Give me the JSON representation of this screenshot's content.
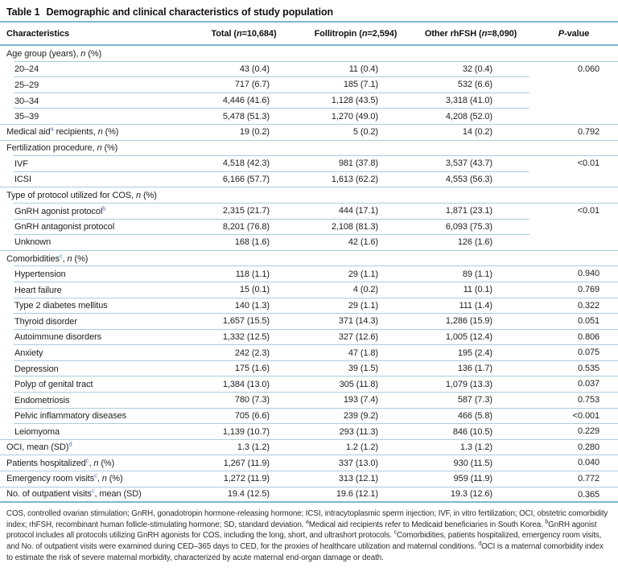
{
  "title": {
    "label": "Table 1",
    "text": "Demographic and clinical characteristics of study population"
  },
  "columns": [
    "Characteristics",
    "Total (~n~=10,684)",
    "Follitropin (~n~=2,594)",
    "Other rhFSH (~n~=8,090)",
    "~P~-value"
  ],
  "rows": [
    {
      "kind": "section",
      "label": "Age group (years), ~n~ (%)"
    },
    {
      "kind": "sub",
      "label": "20–24",
      "total": "43 (0.4)",
      "follitropin": "11 (0.4)",
      "other": "32 (0.4)",
      "p": "0.060",
      "pspan": 4
    },
    {
      "kind": "sub",
      "label": "25–29",
      "total": "717 (6.7)",
      "follitropin": "185 (7.1)",
      "other": "532 (6.6)"
    },
    {
      "kind": "sub",
      "label": "30–34",
      "total": "4,446 (41.6)",
      "follitropin": "1,128 (43.5)",
      "other": "3,318 (41.0)"
    },
    {
      "kind": "sub",
      "label": "35–39",
      "total": "5,478 (51.3)",
      "follitropin": "1,270 (49.0)",
      "other": "4,208 (52.0)",
      "groupEnd": true
    },
    {
      "kind": "top",
      "label": "Medical aid^{a} recipients, ~n~ (%)",
      "total": "19 (0.2)",
      "follitropin": "5 (0.2)",
      "other": "14 (0.2)",
      "p": "0.792"
    },
    {
      "kind": "section",
      "label": "Fertilization procedure, ~n~ (%)"
    },
    {
      "kind": "sub",
      "label": "IVF",
      "total": "4,518 (42.3)",
      "follitropin": "981 (37.8)",
      "other": "3,537 (43.7)",
      "p": "<0.01",
      "pspan": 2
    },
    {
      "kind": "sub",
      "label": "ICSI",
      "total": "6,166 (57.7)",
      "follitropin": "1,613 (62.2)",
      "other": "4,553 (56.3)",
      "groupEnd": true
    },
    {
      "kind": "section",
      "label": "Type of protocol utilized for COS, ~n~ (%)"
    },
    {
      "kind": "sub",
      "label": "GnRH agonist protocol^{b}",
      "total": "2,315 (21.7)",
      "follitropin": "444 (17.1)",
      "other": "1,871 (23.1)",
      "p": "<0.01",
      "pspan": 3
    },
    {
      "kind": "sub",
      "label": "GnRH antagonist protocol",
      "total": "8,201 (76.8)",
      "follitropin": "2,108 (81.3)",
      "other": "6,093 (75.3)"
    },
    {
      "kind": "sub",
      "label": "Unknown",
      "total": "168 (1.6)",
      "follitropin": "42 (1.6)",
      "other": "126 (1.6)",
      "groupEnd": true
    },
    {
      "kind": "section",
      "label": "Comorbidities^{c}, ~n~ (%)"
    },
    {
      "kind": "sub",
      "label": "Hypertension",
      "total": "118 (1.1)",
      "follitropin": "29 (1.1)",
      "other": "89 (1.1)",
      "p": "0.940"
    },
    {
      "kind": "sub",
      "label": "Heart failure",
      "total": "15 (0.1)",
      "follitropin": "4 (0.2)",
      "other": "11 (0.1)",
      "p": "0.769"
    },
    {
      "kind": "sub",
      "label": "Type 2 diabetes mellitus",
      "total": "140 (1.3)",
      "follitropin": "29 (1.1)",
      "other": "111 (1.4)",
      "p": "0.322"
    },
    {
      "kind": "sub",
      "label": "Thyroid disorder",
      "total": "1,657 (15.5)",
      "follitropin": "371 (14.3)",
      "other": "1,286 (15.9)",
      "p": "0.051"
    },
    {
      "kind": "sub",
      "label": "Autoimmune disorders",
      "total": "1,332 (12.5)",
      "follitropin": "327 (12.6)",
      "other": "1,005 (12.4)",
      "p": "0.806"
    },
    {
      "kind": "sub",
      "label": "Anxiety",
      "total": "242 (2.3)",
      "follitropin": "47 (1.8)",
      "other": "195 (2.4)",
      "p": "0.075"
    },
    {
      "kind": "sub",
      "label": "Depression",
      "total": "175 (1.6)",
      "follitropin": "39 (1.5)",
      "other": "136 (1.7)",
      "p": "0.535"
    },
    {
      "kind": "sub",
      "label": "Polyp of genital tract",
      "total": "1,384 (13.0)",
      "follitropin": "305 (11.8)",
      "other": "1,079 (13.3)",
      "p": "0.037"
    },
    {
      "kind": "sub",
      "label": "Endometriosis",
      "total": "780 (7.3)",
      "follitropin": "193 (7.4)",
      "other": "587 (7.3)",
      "p": "0.753"
    },
    {
      "kind": "sub",
      "label": "Pelvic inflammatory diseases",
      "total": "705 (6.6)",
      "follitropin": "239 (9.2)",
      "other": "466 (5.8)",
      "p": "<0.001"
    },
    {
      "kind": "sub",
      "label": "Leiomyoma",
      "total": "1,139 (10.7)",
      "follitropin": "293 (11.3)",
      "other": "846 (10.5)",
      "p": "0.229",
      "groupEnd": true
    },
    {
      "kind": "top",
      "label": "OCI, mean (SD)^{d}",
      "total": "1.3 (1.2)",
      "follitropin": "1.2 (1.2)",
      "other": "1.3 (1.2)",
      "p": "0.280"
    },
    {
      "kind": "top",
      "label": "Patients hospitalized^{c}, ~n~ (%)",
      "total": "1,267 (11.9)",
      "follitropin": "337 (13.0)",
      "other": "930 (11.5)",
      "p": "0.040"
    },
    {
      "kind": "top",
      "label": "Emergency room visits^{c}, ~n~ (%)",
      "total": "1,272 (11.9)",
      "follitropin": "313 (12.1)",
      "other": "959 (11.9)",
      "p": "0.772"
    },
    {
      "kind": "top",
      "label": "No. of outpatient visits^{c}, mean (SD)",
      "total": "19.4 (12.5)",
      "follitropin": "19.6 (12.1)",
      "other": "19.3 (12.6)",
      "p": "0.365"
    }
  ],
  "footnote": "COS, controlled ovarian stimulation; GnRH, gonadotropin hormone-releasing hormone; ICSI, intracytoplasmic sperm injection; IVF, in vitro fertilization; OCI, obstetric comorbidity index; rhFSH, recombinant human follicle-stimulating hormone; SD, standard deviation. ^{a}Medical aid recipients refer to Medicaid beneficiaries in South Korea. ^{b}GnRH agonist protocol includes all protocols utilizing GnRH agonists for COS, including the long, short, and ultrashort protocols. ^{c}Comorbidities, patients hospitalized, emergency room visits, and No. of outpatient visits were examined during CED–365 days to CED, for the proxies of healthcare utilization and maternal conditions. ^{d}OCI is a maternal comorbidity index to estimate the risk of severe maternal morbidity, characterized by acute maternal end-organ damage or death.",
  "colors": {
    "rule_heavy": "#7db6d3",
    "rule_light": "#a9cde0",
    "superscript_blue": "#4a6fbd",
    "text": "#1e1e1e"
  }
}
